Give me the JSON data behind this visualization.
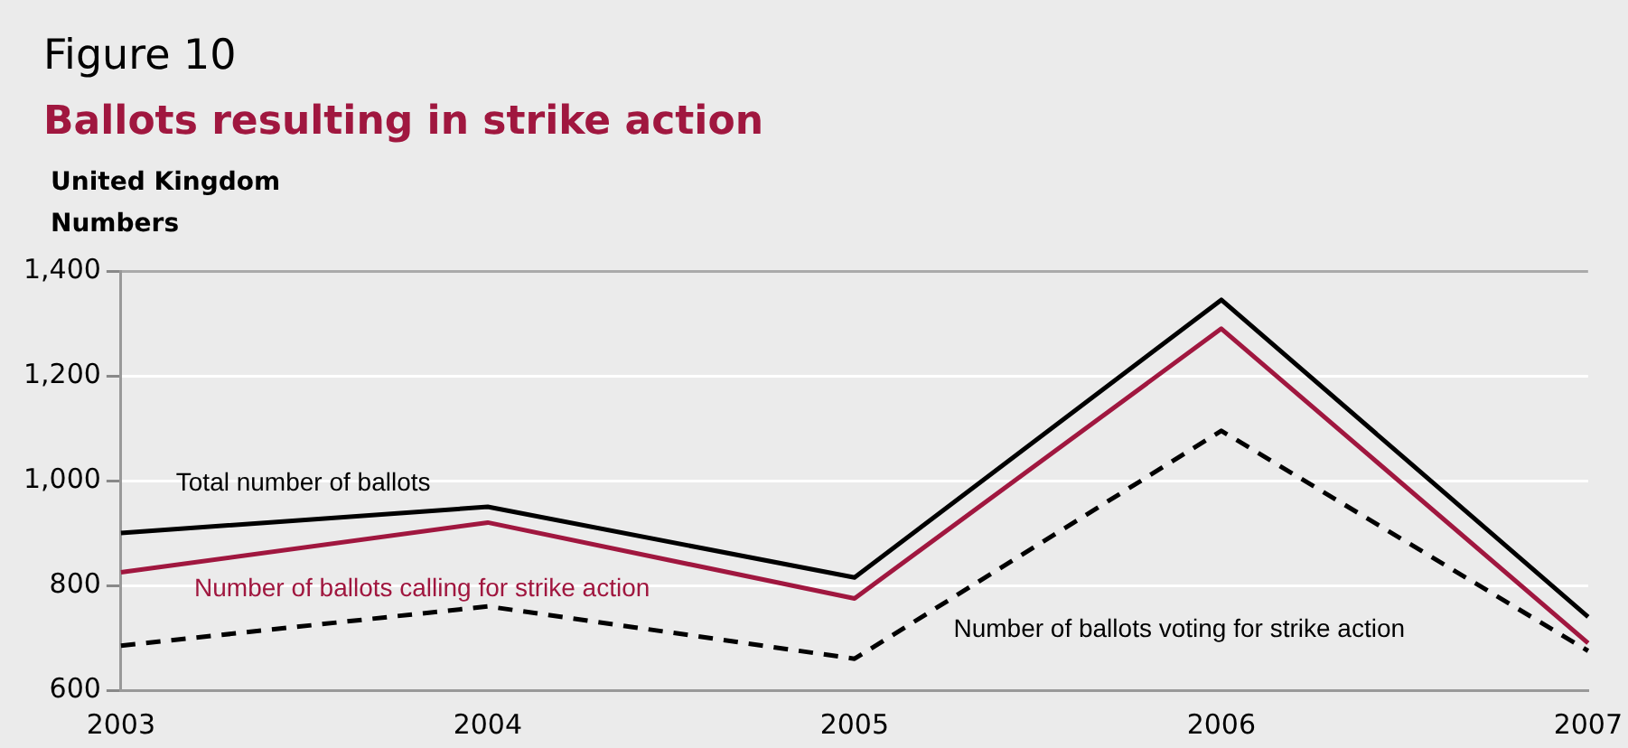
{
  "chart_data": {
    "type": "line",
    "title": "Figure 10",
    "subtitle": "Ballots resulting in strike action",
    "ylabel": "Numbers",
    "annotations": [
      "United Kingdom"
    ],
    "categories": [
      "2003",
      "2004",
      "2005",
      "2006",
      "2007"
    ],
    "series": [
      {
        "name": "Total number of ballots",
        "color": "#000000",
        "values": [
          900,
          950,
          815,
          1345,
          740
        ],
        "line_style": "solid"
      },
      {
        "name": "Number of ballots calling for strike action",
        "color": "#a0173f",
        "values": [
          825,
          920,
          775,
          1290,
          690
        ],
        "line_style": "solid"
      },
      {
        "name": "Number of ballots voting for strike action",
        "color": "#000000",
        "values": [
          685,
          760,
          660,
          1095,
          675
        ],
        "line_style": "dashed"
      }
    ],
    "ylim": [
      600,
      1400
    ],
    "yticks": [
      {
        "value": 600,
        "label": "600"
      },
      {
        "value": 800,
        "label": "800"
      },
      {
        "value": 1000,
        "label": "1,000"
      },
      {
        "value": 1200,
        "label": "1,200"
      },
      {
        "value": 1400,
        "label": "1,400"
      }
    ],
    "grid": "y",
    "legend": false,
    "marker": "none"
  }
}
